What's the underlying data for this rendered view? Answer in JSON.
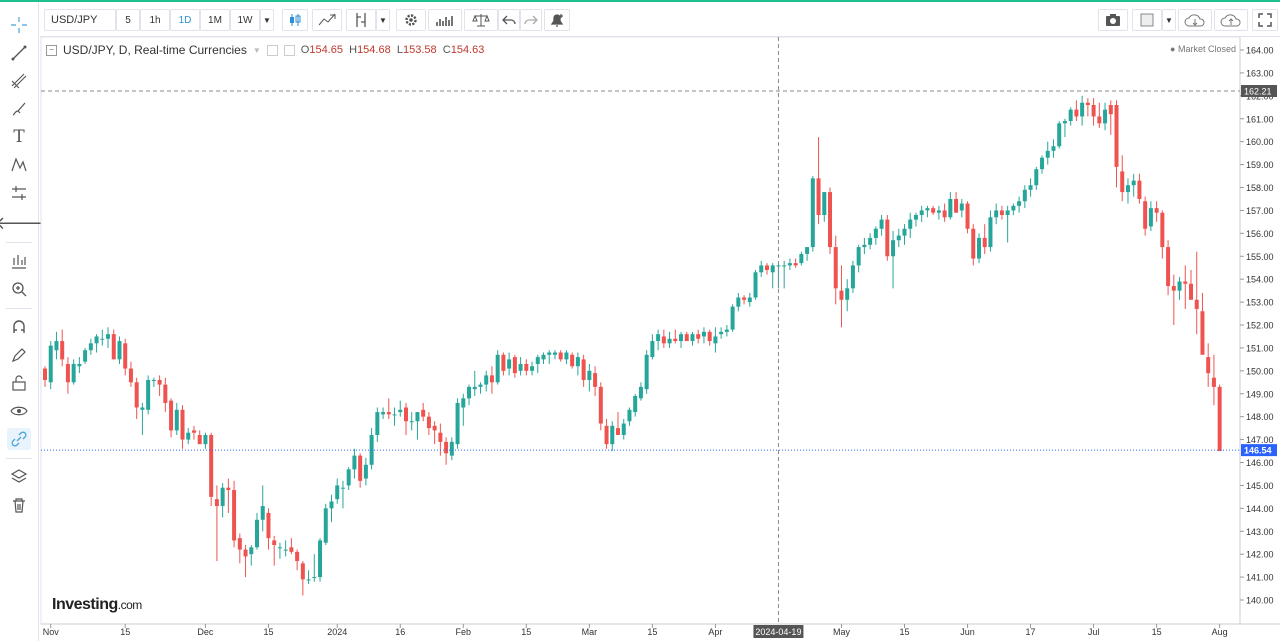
{
  "toolbar": {
    "symbol": "USD/JPY",
    "intervals": [
      "5",
      "1h",
      "1D",
      "1M",
      "1W"
    ],
    "active_interval": "1D"
  },
  "legend": {
    "title": "USD/JPY, D, Real-time Currencies",
    "open_label": "O",
    "open": "154.65",
    "high_label": "H",
    "high": "154.68",
    "low_label": "L",
    "low": "153.58",
    "close_label": "C",
    "close": "154.63"
  },
  "status": "Market Closed",
  "logo": {
    "name": "Investing",
    "suffix": ".com"
  },
  "colors": {
    "up": "#26a69a",
    "down": "#ef5350",
    "last_price": "#2962ff",
    "crosshair_label": "#555555"
  },
  "chart_data": {
    "type": "candlestick",
    "title": "USD/JPY, D, Real-time Currencies",
    "ylim": [
      139.5,
      164.5
    ],
    "y_ticks": [
      "140.00",
      "141.00",
      "142.00",
      "143.00",
      "144.00",
      "145.00",
      "146.00",
      "147.00",
      "148.00",
      "149.00",
      "150.00",
      "151.00",
      "152.00",
      "153.00",
      "154.00",
      "155.00",
      "156.00",
      "157.00",
      "158.00",
      "159.00",
      "160.00",
      "161.00",
      "162.00",
      "163.00",
      "164.00"
    ],
    "x_ticks": [
      "Nov",
      "15",
      "Dec",
      "15",
      "2024",
      "16",
      "Feb",
      "15",
      "Mar",
      "15",
      "Apr",
      "2024-04-19",
      "May",
      "15",
      "Jun",
      "17",
      "Jul",
      "15",
      "Aug"
    ],
    "x_tick_index": [
      1,
      14,
      28,
      39,
      51,
      62,
      73,
      84,
      95,
      106,
      117,
      128,
      139,
      150,
      161,
      172,
      183,
      194,
      205
    ],
    "last_price": 146.54,
    "crosshair_price": 162.21,
    "crosshair_date": "2024-04-19",
    "crosshair_index": 128,
    "candles": [
      [
        150.1,
        150.2,
        149.3,
        149.6
      ],
      [
        149.5,
        151.3,
        149.2,
        151.1
      ],
      [
        150.9,
        151.7,
        150.5,
        151.3
      ],
      [
        151.3,
        151.8,
        150.2,
        150.5
      ],
      [
        150.3,
        150.6,
        149.0,
        149.5
      ],
      [
        149.5,
        150.5,
        149.4,
        150.3
      ],
      [
        150.2,
        150.6,
        149.9,
        150.3
      ],
      [
        150.4,
        151.0,
        150.3,
        150.9
      ],
      [
        150.9,
        151.4,
        150.7,
        151.2
      ],
      [
        151.2,
        151.6,
        150.8,
        151.5
      ],
      [
        151.4,
        151.8,
        151.1,
        151.4
      ],
      [
        151.4,
        151.9,
        151.0,
        151.6
      ],
      [
        151.6,
        151.8,
        150.5,
        150.5
      ],
      [
        150.5,
        151.5,
        150.3,
        151.3
      ],
      [
        151.2,
        151.4,
        149.8,
        150.1
      ],
      [
        150.1,
        150.4,
        149.3,
        149.5
      ],
      [
        149.5,
        149.7,
        147.9,
        148.4
      ],
      [
        148.3,
        148.6,
        147.2,
        148.4
      ],
      [
        148.3,
        149.8,
        148.1,
        149.6
      ],
      [
        149.6,
        149.7,
        149.3,
        149.6
      ],
      [
        149.6,
        149.8,
        148.9,
        149.4
      ],
      [
        149.4,
        149.7,
        148.2,
        148.6
      ],
      [
        148.7,
        148.8,
        147.1,
        147.4
      ],
      [
        147.4,
        148.6,
        147.2,
        148.3
      ],
      [
        148.3,
        148.5,
        146.6,
        147.0
      ],
      [
        147.0,
        147.5,
        146.8,
        147.3
      ],
      [
        147.4,
        147.6,
        147.0,
        147.3
      ],
      [
        147.2,
        147.4,
        146.9,
        146.8
      ],
      [
        146.8,
        147.3,
        146.6,
        147.2
      ],
      [
        147.2,
        147.3,
        144.1,
        144.5
      ],
      [
        144.4,
        145.0,
        141.7,
        144.1
      ],
      [
        144.1,
        145.1,
        143.6,
        144.9
      ],
      [
        144.9,
        145.3,
        143.8,
        144.8
      ],
      [
        144.8,
        145.2,
        142.3,
        142.6
      ],
      [
        142.7,
        142.9,
        141.6,
        142.2
      ],
      [
        142.2,
        142.4,
        141.0,
        141.9
      ],
      [
        142.0,
        142.4,
        141.5,
        142.3
      ],
      [
        142.3,
        143.8,
        142.2,
        143.5
      ],
      [
        143.5,
        145.0,
        143.0,
        144.1
      ],
      [
        143.8,
        144.0,
        142.2,
        142.7
      ],
      [
        142.6,
        142.8,
        141.5,
        142.4
      ],
      [
        142.3,
        142.5,
        141.8,
        142.3
      ],
      [
        142.2,
        142.6,
        141.9,
        142.2
      ],
      [
        142.3,
        142.7,
        142.0,
        142.1
      ],
      [
        142.1,
        142.2,
        141.3,
        141.7
      ],
      [
        141.6,
        141.7,
        140.2,
        140.9
      ],
      [
        140.9,
        141.3,
        140.7,
        140.9
      ],
      [
        141.0,
        142.0,
        140.8,
        141.0
      ],
      [
        141.0,
        142.7,
        140.8,
        142.6
      ],
      [
        142.5,
        144.2,
        142.4,
        144.0
      ],
      [
        144.0,
        144.6,
        143.4,
        144.3
      ],
      [
        144.4,
        145.3,
        144.2,
        145.0
      ],
      [
        144.9,
        145.2,
        144.0,
        144.9
      ],
      [
        145.0,
        145.8,
        144.8,
        145.7
      ],
      [
        145.7,
        146.6,
        145.3,
        146.3
      ],
      [
        146.3,
        146.4,
        144.9,
        145.2
      ],
      [
        145.3,
        146.2,
        145.0,
        145.9
      ],
      [
        145.9,
        147.5,
        145.7,
        147.2
      ],
      [
        147.2,
        148.4,
        146.9,
        148.2
      ],
      [
        148.1,
        148.4,
        147.9,
        148.2
      ],
      [
        148.2,
        148.8,
        147.9,
        148.1
      ],
      [
        148.1,
        148.4,
        147.6,
        148.1
      ],
      [
        148.2,
        148.7,
        148.0,
        148.3
      ],
      [
        148.4,
        148.6,
        147.2,
        147.8
      ],
      [
        147.8,
        148.2,
        147.4,
        147.8
      ],
      [
        147.8,
        148.2,
        147.0,
        148.2
      ],
      [
        148.3,
        148.6,
        147.8,
        148.0
      ],
      [
        148.0,
        148.2,
        147.2,
        147.5
      ],
      [
        147.6,
        147.8,
        146.8,
        147.4
      ],
      [
        147.3,
        147.7,
        146.3,
        146.9
      ],
      [
        146.9,
        147.1,
        145.9,
        146.4
      ],
      [
        146.3,
        147.1,
        146.1,
        146.9
      ],
      [
        146.8,
        148.8,
        146.6,
        148.6
      ],
      [
        148.4,
        149.0,
        147.6,
        148.8
      ],
      [
        148.8,
        149.4,
        148.5,
        149.3
      ],
      [
        149.2,
        150.0,
        148.9,
        149.3
      ],
      [
        149.3,
        149.5,
        149.0,
        149.4
      ],
      [
        149.4,
        150.0,
        149.1,
        149.8
      ],
      [
        149.8,
        150.2,
        149.0,
        149.5
      ],
      [
        149.5,
        150.9,
        149.4,
        150.7
      ],
      [
        150.7,
        150.8,
        149.8,
        150.0
      ],
      [
        150.1,
        150.8,
        149.8,
        150.5
      ],
      [
        150.6,
        150.7,
        149.7,
        149.9
      ],
      [
        150.0,
        150.6,
        149.8,
        150.3
      ],
      [
        150.3,
        150.5,
        149.8,
        150.0
      ],
      [
        150.0,
        150.4,
        149.8,
        150.2
      ],
      [
        150.3,
        150.7,
        149.9,
        150.6
      ],
      [
        150.5,
        150.8,
        150.3,
        150.7
      ],
      [
        150.7,
        150.9,
        150.3,
        150.8
      ],
      [
        150.7,
        150.9,
        150.5,
        150.8
      ],
      [
        150.8,
        150.9,
        150.4,
        150.5
      ],
      [
        150.5,
        150.9,
        150.3,
        150.8
      ],
      [
        150.7,
        150.8,
        150.1,
        150.2
      ],
      [
        150.2,
        150.8,
        149.8,
        150.6
      ],
      [
        150.5,
        150.7,
        149.3,
        149.6
      ],
      [
        149.6,
        150.3,
        149.1,
        150.0
      ],
      [
        149.9,
        150.2,
        148.9,
        149.3
      ],
      [
        149.3,
        149.5,
        147.4,
        147.7
      ],
      [
        147.6,
        147.9,
        146.6,
        146.8
      ],
      [
        146.8,
        147.8,
        146.5,
        147.6
      ],
      [
        147.5,
        148.2,
        147.3,
        147.2
      ],
      [
        147.2,
        147.9,
        147.0,
        147.7
      ],
      [
        147.8,
        148.4,
        147.6,
        148.3
      ],
      [
        148.2,
        149.0,
        148.0,
        148.9
      ],
      [
        148.8,
        149.5,
        148.7,
        149.3
      ],
      [
        149.2,
        150.9,
        149.0,
        150.7
      ],
      [
        150.6,
        151.6,
        150.5,
        151.3
      ],
      [
        151.3,
        151.8,
        150.9,
        151.6
      ],
      [
        151.5,
        151.8,
        151.0,
        151.2
      ],
      [
        151.2,
        151.7,
        151.0,
        151.4
      ],
      [
        151.4,
        151.8,
        151.2,
        151.3
      ],
      [
        151.3,
        151.7,
        151.0,
        151.6
      ],
      [
        151.6,
        151.7,
        151.3,
        151.3
      ],
      [
        151.3,
        151.7,
        151.1,
        151.6
      ],
      [
        151.6,
        151.8,
        151.2,
        151.4
      ],
      [
        151.5,
        151.9,
        151.2,
        151.7
      ],
      [
        151.7,
        151.8,
        151.1,
        151.3
      ],
      [
        151.2,
        151.9,
        150.8,
        151.5
      ],
      [
        151.6,
        151.9,
        151.4,
        151.7
      ],
      [
        151.7,
        152.0,
        151.5,
        151.8
      ],
      [
        151.8,
        152.9,
        151.7,
        152.8
      ],
      [
        152.8,
        153.4,
        152.6,
        153.2
      ],
      [
        153.2,
        153.3,
        152.9,
        153.1
      ],
      [
        153.0,
        153.4,
        152.8,
        153.2
      ],
      [
        153.2,
        154.4,
        153.1,
        154.3
      ],
      [
        154.3,
        154.8,
        154.1,
        154.6
      ],
      [
        154.6,
        154.7,
        154.2,
        154.4
      ],
      [
        154.3,
        154.7,
        153.6,
        154.6
      ],
      [
        154.6,
        154.7,
        153.6,
        154.6
      ],
      [
        154.6,
        154.8,
        153.6,
        154.6
      ],
      [
        154.6,
        154.9,
        154.4,
        154.7
      ],
      [
        154.7,
        154.9,
        154.5,
        154.6
      ],
      [
        154.7,
        155.2,
        154.6,
        155.1
      ],
      [
        155.1,
        155.4,
        154.8,
        155.4
      ],
      [
        155.4,
        158.5,
        155.2,
        158.4
      ],
      [
        158.4,
        160.2,
        156.4,
        156.8
      ],
      [
        156.8,
        157.8,
        156.5,
        157.8
      ],
      [
        157.8,
        158.0,
        155.1,
        155.4
      ],
      [
        155.4,
        155.9,
        152.9,
        153.6
      ],
      [
        153.5,
        154.6,
        151.9,
        153.1
      ],
      [
        153.1,
        154.0,
        152.6,
        153.6
      ],
      [
        153.6,
        154.8,
        153.4,
        154.6
      ],
      [
        154.6,
        155.5,
        154.3,
        155.4
      ],
      [
        155.4,
        155.8,
        155.1,
        155.5
      ],
      [
        155.5,
        156.0,
        155.3,
        155.8
      ],
      [
        155.8,
        156.3,
        155.5,
        156.2
      ],
      [
        156.2,
        156.8,
        155.9,
        156.6
      ],
      [
        156.6,
        156.8,
        154.8,
        155.0
      ],
      [
        155.0,
        156.1,
        153.6,
        155.7
      ],
      [
        155.7,
        156.2,
        155.4,
        155.9
      ],
      [
        155.9,
        156.4,
        155.5,
        156.2
      ],
      [
        156.2,
        156.9,
        155.8,
        156.6
      ],
      [
        156.6,
        156.9,
        156.3,
        156.8
      ],
      [
        156.8,
        157.2,
        156.5,
        157.0
      ],
      [
        157.0,
        157.2,
        156.7,
        157.1
      ],
      [
        157.1,
        157.2,
        156.8,
        156.9
      ],
      [
        156.9,
        157.2,
        156.6,
        157.0
      ],
      [
        157.0,
        157.3,
        156.5,
        156.7
      ],
      [
        156.7,
        157.8,
        156.6,
        157.5
      ],
      [
        157.5,
        157.8,
        156.9,
        156.9
      ],
      [
        157.0,
        157.5,
        156.7,
        157.3
      ],
      [
        157.3,
        157.4,
        156.0,
        156.2
      ],
      [
        156.2,
        156.4,
        154.6,
        154.9
      ],
      [
        154.9,
        156.0,
        154.7,
        155.8
      ],
      [
        155.8,
        156.4,
        155.1,
        155.4
      ],
      [
        155.4,
        157.0,
        155.2,
        156.7
      ],
      [
        156.7,
        157.3,
        156.4,
        157.0
      ],
      [
        157.0,
        157.2,
        156.6,
        156.8
      ],
      [
        156.8,
        157.2,
        155.6,
        157.0
      ],
      [
        157.0,
        157.3,
        156.8,
        157.2
      ],
      [
        157.2,
        157.6,
        156.9,
        157.4
      ],
      [
        157.4,
        158.1,
        157.1,
        157.9
      ],
      [
        157.9,
        158.4,
        157.6,
        158.1
      ],
      [
        158.1,
        158.9,
        157.9,
        158.8
      ],
      [
        158.8,
        159.4,
        158.6,
        159.3
      ],
      [
        159.3,
        160.0,
        159.0,
        159.6
      ],
      [
        159.6,
        160.1,
        159.3,
        159.8
      ],
      [
        159.8,
        160.9,
        159.7,
        160.8
      ],
      [
        160.8,
        161.0,
        160.2,
        160.9
      ],
      [
        160.9,
        161.5,
        160.7,
        161.4
      ],
      [
        161.4,
        161.8,
        160.9,
        161.1
      ],
      [
        161.1,
        162.0,
        160.7,
        161.7
      ],
      [
        161.7,
        161.9,
        161.1,
        161.6
      ],
      [
        161.6,
        161.9,
        160.7,
        161.1
      ],
      [
        161.1,
        161.7,
        160.6,
        160.8
      ],
      [
        160.8,
        161.7,
        160.5,
        161.4
      ],
      [
        161.6,
        161.8,
        160.3,
        161.2
      ],
      [
        161.6,
        161.8,
        158.0,
        158.9
      ],
      [
        158.7,
        159.4,
        157.4,
        157.8
      ],
      [
        157.8,
        158.4,
        157.3,
        158.1
      ],
      [
        158.1,
        158.6,
        157.6,
        158.3
      ],
      [
        158.3,
        158.6,
        157.3,
        157.5
      ],
      [
        157.4,
        157.6,
        155.9,
        156.2
      ],
      [
        156.3,
        157.4,
        156.1,
        157.1
      ],
      [
        157.1,
        157.4,
        156.5,
        156.9
      ],
      [
        156.9,
        157.0,
        154.9,
        155.4
      ],
      [
        155.4,
        155.7,
        153.3,
        153.7
      ],
      [
        153.7,
        154.2,
        152.0,
        153.5
      ],
      [
        153.5,
        154.1,
        153.1,
        153.9
      ],
      [
        153.9,
        154.6,
        152.7,
        153.8
      ],
      [
        153.8,
        154.4,
        153.2,
        153.1
      ],
      [
        153.1,
        155.2,
        151.6,
        152.7
      ],
      [
        152.6,
        153.4,
        150.9,
        150.7
      ],
      [
        150.6,
        151.2,
        149.3,
        149.9
      ],
      [
        149.7,
        150.7,
        148.5,
        149.3
      ],
      [
        149.3,
        149.4,
        146.5,
        146.5
      ]
    ]
  }
}
